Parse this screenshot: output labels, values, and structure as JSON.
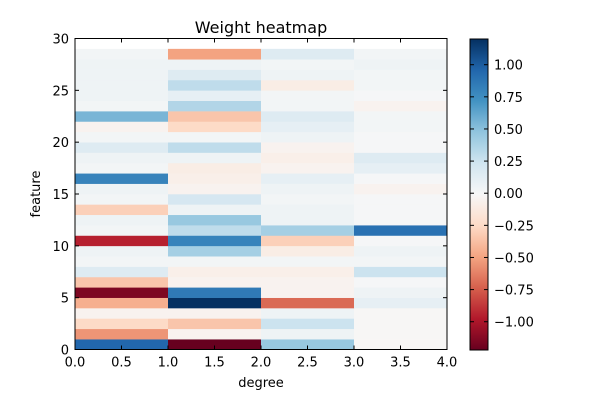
{
  "chart_data": {
    "type": "heatmap",
    "title": "Weight heatmap",
    "xlabel": "degree",
    "ylabel": "feature",
    "xlim": [
      0,
      4
    ],
    "ylim": [
      0,
      30
    ],
    "x_ticks": [
      "0.0",
      "0.5",
      "1.0",
      "1.5",
      "2.0",
      "2.5",
      "3.0",
      "3.5",
      "4.0"
    ],
    "y_ticks": [
      "0",
      "5",
      "10",
      "15",
      "20",
      "25",
      "30"
    ],
    "colorbar": {
      "vmin": -1.22,
      "vmax": 1.2,
      "ticks": [
        "1.00",
        "0.75",
        "0.50",
        "0.25",
        "0.00",
        "−0.25",
        "−0.50",
        "−0.75",
        "−1.00"
      ],
      "cmap": "RdBu"
    },
    "columns": [
      "0-1",
      "1-2",
      "2-3",
      "3-4"
    ],
    "rows": 29,
    "values": [
      [
        0.95,
        -1.22,
        0.45,
        -0.02
      ],
      [
        -0.55,
        -0.05,
        0.05,
        -0.02
      ],
      [
        -0.25,
        -0.35,
        0.25,
        -0.02
      ],
      [
        -0.05,
        -0.05,
        0.05,
        -0.02
      ],
      [
        -0.45,
        1.2,
        -0.7,
        0.1
      ],
      [
        -1.15,
        0.85,
        -0.05,
        0.05
      ],
      [
        -0.35,
        -0.05,
        -0.05,
        0.0
      ],
      [
        0.15,
        -0.08,
        -0.08,
        0.25
      ],
      [
        0.02,
        0.02,
        0.02,
        0.02
      ],
      [
        0.05,
        0.4,
        -0.1,
        0.05
      ],
      [
        -0.95,
        0.8,
        -0.3,
        0.0
      ],
      [
        0.02,
        0.3,
        0.4,
        0.9
      ],
      [
        0.05,
        0.45,
        0.05,
        0.0
      ],
      [
        -0.3,
        0.05,
        0.05,
        0.0
      ],
      [
        0.02,
        0.2,
        0.02,
        0.0
      ],
      [
        0.05,
        -0.05,
        0.05,
        -0.05
      ],
      [
        0.8,
        -0.08,
        0.1,
        0.0
      ],
      [
        0.02,
        -0.1,
        -0.05,
        0.1
      ],
      [
        0.05,
        0.05,
        -0.08,
        0.15
      ],
      [
        0.15,
        0.3,
        -0.05,
        0.0
      ],
      [
        0.02,
        0.02,
        0.05,
        0.0
      ],
      [
        -0.05,
        -0.25,
        0.1,
        0.02
      ],
      [
        0.55,
        -0.35,
        0.15,
        0.02
      ],
      [
        0.02,
        0.35,
        0.02,
        -0.05
      ],
      [
        0.05,
        0.1,
        0.02,
        0.0
      ],
      [
        0.05,
        0.3,
        -0.1,
        0.02
      ],
      [
        0.05,
        0.15,
        0.05,
        0.02
      ],
      [
        0.05,
        0.05,
        0.02,
        0.05
      ],
      [
        0.02,
        -0.5,
        0.15,
        0.02
      ]
    ]
  }
}
